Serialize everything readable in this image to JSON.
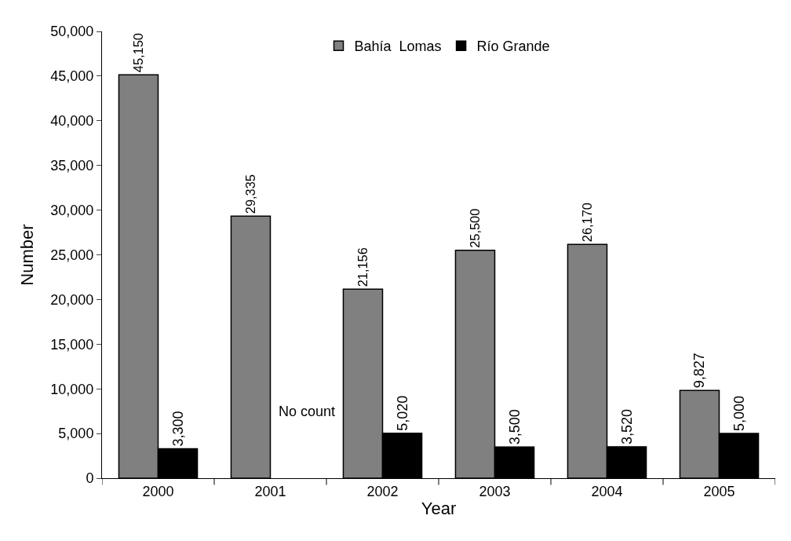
{
  "chart_data": {
    "type": "bar",
    "xlabel": "Year",
    "ylabel": "Number",
    "categories": [
      "2000",
      "2001",
      "2002",
      "2003",
      "2004",
      "2005"
    ],
    "series": [
      {
        "name": "Bahía  Lomas",
        "color": "#808080",
        "values": [
          45150,
          29335,
          21156,
          25500,
          26170,
          9827
        ],
        "value_labels": [
          "45,150",
          "29,335",
          "21,156",
          "25,500",
          "26,170",
          "9,827"
        ]
      },
      {
        "name": "Río Grande",
        "color": "#000000",
        "values": [
          3300,
          null,
          5020,
          3500,
          3520,
          5000
        ],
        "value_labels": [
          "3,300",
          null,
          "5,020",
          "3,500",
          "3,520",
          "5,000"
        ]
      }
    ],
    "annotations": [
      {
        "text": "No count",
        "x": "2001",
        "y": 7500
      }
    ],
    "ylim": [
      0,
      50000
    ],
    "yticks": [
      {
        "value": 0,
        "label": "0"
      },
      {
        "value": 5000,
        "label": "5,000"
      },
      {
        "value": 10000,
        "label": "10,000"
      },
      {
        "value": 15000,
        "label": "15,000"
      },
      {
        "value": 20000,
        "label": "20,000"
      },
      {
        "value": 25000,
        "label": "25,000"
      },
      {
        "value": 30000,
        "label": "30,000"
      },
      {
        "value": 35000,
        "label": "35,000"
      },
      {
        "value": 40000,
        "label": "40,000"
      },
      {
        "value": 45000,
        "label": "45,000"
      },
      {
        "value": 50000,
        "label": "50,000"
      }
    ],
    "grid": false,
    "legend": "top"
  }
}
